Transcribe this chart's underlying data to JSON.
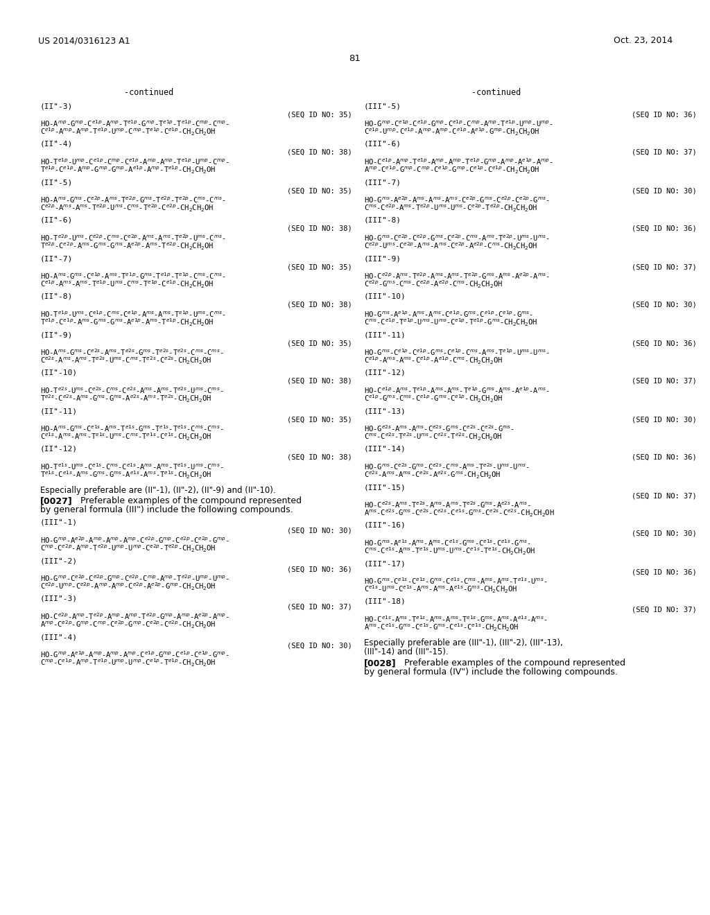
{
  "header_left": "US 2014/0316123 A1",
  "header_right": "Oct. 23, 2014",
  "page_number": "81",
  "left_continued": "-continued",
  "right_continued": "-continued",
  "left_entries": [
    {
      "label": "(II\"-3)",
      "seq": "(SEQ ID NO: 35)",
      "line1": "HO-A$^{mp}$-G$^{mp}$-C$^{e1p}$-A$^{mp}$-T$^{e1p}$-G$^{mp}$-T$^{e1p}$-T$^{e1p}$-C$^{mp}$-C$^{mp}$-",
      "line2": "C$^{e1p}$-A$^{mp}$-A$^{mp}$-T$^{e1p}$-U$^{mp}$-C$^{mp}$-T$^{e1p}$-C$^{e1p}$-CH$_2$CH$_2$OH"
    },
    {
      "label": "(II\"-4)",
      "seq": "(SEQ ID NO: 38)",
      "line1": "HO-T$^{e1p}$-U$^{mp}$-C$^{e1p}$-C$^{mp}$-C$^{e1p}$-A$^{mp}$-A$^{mp}$-T$^{e1p}$-U$^{mp}$-C$^{mp}$-",
      "line2": "T$^{e1p}$-C$^{e1p}$-A$^{mp}$-G$^{mp}$-G$^{mp}$-A$^{e1p}$-A$^{mp}$-T$^{e1p}$-CH$_2$CH$_2$OH"
    },
    {
      "label": "(II\"-5)",
      "seq": "(SEQ ID NO: 35)",
      "line1": "HO-A$^{ms}$-G$^{ms}$-C$^{e2p}$-A$^{ms}$-T$^{e2p}$-G$^{ms}$-T$^{e2p}$-T$^{e2p}$-C$^{ms}$-C$^{ms}$-",
      "line2": "C$^{e2p}$-A$^{ms}$-A$^{ms}$-T$^{e2p}$-U$^{ms}$-C$^{ms}$-T$^{e2p}$-C$^{e2p}$-CH$_2$CH$_2$OH"
    },
    {
      "label": "(II\"-6)",
      "seq": "(SEQ ID NO: 38)",
      "line1": "HO-T$^{e2p}$-U$^{ms}$-C$^{e2p}$-C$^{ms}$-C$^{e2p}$-A$^{ms}$-A$^{ms}$-T$^{e2p}$-U$^{ms}$-C$^{ms}$-",
      "line2": "T$^{e2p}$-C$^{e2p}$-A$^{ms}$-G$^{ms}$-G$^{ms}$-A$^{e2p}$-A$^{ms}$-T$^{e2p}$-CH$_2$CH$_2$OH"
    },
    {
      "label": "(II\"-7)",
      "seq": "(SEQ ID NO: 35)",
      "line1": "HO-A$^{ms}$-G$^{ms}$-C$^{e1p}$-A$^{ms}$-T$^{e1p}$-G$^{ms}$-T$^{e1p}$-T$^{e1p}$-C$^{ms}$-C$^{ms}$-",
      "line2": "C$^{e1p}$-A$^{ms}$-A$^{ms}$-T$^{e1p}$-U$^{ms}$-C$^{ms}$-T$^{e1p}$-C$^{e1p}$-CH$_2$CH$_2$OH"
    },
    {
      "label": "(II\"-8)",
      "seq": "(SEQ ID NO: 38)",
      "line1": "HO-T$^{e1p}$-U$^{ms}$-C$^{e1p}$-C$^{ms}$-C$^{e1p}$-A$^{ms}$-A$^{ms}$-T$^{e1p}$-U$^{ms}$-C$^{ms}$-",
      "line2": "T$^{e1p}$-C$^{e1p}$-A$^{ms}$-G$^{ms}$-G$^{ms}$-A$^{e1p}$-A$^{ms}$-T$^{e1p}$-CH$_2$CH$_2$OH"
    },
    {
      "label": "(II\"-9)",
      "seq": "(SEQ ID NO: 35)",
      "line1": "HO-A$^{ms}$-G$^{ms}$-C$^{e2s}$-A$^{ms}$-T$^{e2s}$-G$^{ms}$-T$^{e2s}$-T$^{e2s}$-C$^{ms}$-C$^{ms}$-",
      "line2": "C$^{e2s}$-A$^{ms}$-A$^{ms}$-T$^{e2s}$-U$^{ms}$-C$^{ms}$-T$^{e2s}$-C$^{e2s}$-CH$_2$CH$_2$OH"
    },
    {
      "label": "(II\"-10)",
      "seq": "(SEQ ID NO: 38)",
      "line1": "HO-T$^{e2s}$-U$^{ms}$-C$^{e2s}$-C$^{ms}$-C$^{e2s}$-A$^{ms}$-A$^{ms}$-T$^{e2s}$-U$^{ms}$-C$^{ms}$-",
      "line2": "T$^{e2s}$-C$^{e2s}$-A$^{ms}$-G$^{ms}$-G$^{ms}$-A$^{e2s}$-A$^{ms}$-T$^{e2s}$-CH$_2$CH$_2$OH"
    },
    {
      "label": "(II\"-11)",
      "seq": "(SEQ ID NO: 35)",
      "line1": "HO-A$^{ms}$-G$^{ms}$-C$^{e1s}$-A$^{ms}$-T$^{e1s}$-G$^{ms}$-T$^{e1s}$-T$^{e1s}$-C$^{ms}$-C$^{ms}$-",
      "line2": "C$^{e1s}$-A$^{ms}$-A$^{ms}$-T$^{e1s}$-U$^{ms}$-C$^{ms}$-T$^{e1s}$-C$^{e1s}$-CH$_2$CH$_2$OH"
    },
    {
      "label": "(II\"-12)",
      "seq": "(SEQ ID NO: 38)",
      "line1": "HO-T$^{e1s}$-U$^{ms}$-C$^{e1s}$-C$^{ms}$-C$^{e1s}$-A$^{ms}$-A$^{ms}$-T$^{e1s}$-U$^{ms}$-C$^{ms}$-",
      "line2": "T$^{e1s}$-C$^{e1s}$-A$^{ms}$-G$^{ms}$-G$^{ms}$-A$^{e1s}$-A$^{ms}$-T$^{e1s}$-CH$_2$CH$_2$OH"
    }
  ],
  "left_note": "Especially preferable are (II\"-1), (II\"-2), (II\"-9) and (II\"-10).",
  "left_para_num": "[0027]",
  "left_para_body": "Preferable examples of the compound represented by general formula (III\") include the following compounds.",
  "left_iii_entries": [
    {
      "label": "(III\"-1)",
      "seq": "(SEQ ID NO: 30)",
      "line1": "HO-G$^{mp}$-A$^{e2p}$-A$^{mp}$-A$^{mp}$-A$^{mp}$-C$^{e2p}$-G$^{mp}$-C$^{e2p}$-C$^{e2p}$-G$^{mp}$-",
      "line2": "C$^{mp}$-C$^{e2p}$-A$^{mp}$-T$^{e2p}$-U$^{mp}$-U$^{mp}$-C$^{e2p}$-T$^{e2p}$-CH$_2$CH$_2$OH"
    },
    {
      "label": "(III\"-2)",
      "seq": "(SEQ ID NO: 36)",
      "line1": "HO-G$^{mp}$-C$^{e2p}$-C$^{e2p}$-G$^{mp}$-C$^{e2p}$-C$^{mp}$-A$^{mp}$-T$^{e2p}$-U$^{mp}$-U$^{mp}$-",
      "line2": "C$^{e2p}$-U$^{mp}$-C$^{e2p}$-A$^{mp}$-A$^{mp}$-C$^{e2p}$-A$^{e2p}$-G$^{mp}$-CH$_2$CH$_2$OH"
    },
    {
      "label": "(III\"-3)",
      "seq": "(SEQ ID NO: 37)",
      "line1": "HO-C$^{e2p}$-A$^{mp}$-T$^{e2p}$-A$^{mp}$-A$^{mp}$-T$^{e2p}$-G$^{mp}$-A$^{mp}$-A$^{e2p}$-A$^{mp}$-",
      "line2": "A$^{mp}$-C$^{e2p}$-G$^{mp}$-C$^{mp}$-C$^{e2p}$-G$^{mp}$-C$^{e2p}$-C$^{e2p}$-CH$_2$CH$_2$OH"
    },
    {
      "label": "(III\"-4)",
      "seq": "(SEQ ID NO: 30)",
      "line1": "HO-G$^{mp}$-A$^{e1p}$-A$^{mp}$-A$^{mp}$-A$^{mp}$-C$^{e1p}$-G$^{mp}$-C$^{e1p}$-C$^{e1p}$-G$^{mp}$-",
      "line2": "C$^{mp}$-C$^{e1p}$-A$^{mp}$-T$^{e1p}$-U$^{mp}$-U$^{mp}$-C$^{e1p}$-T$^{e1p}$-CH$_2$CH$_2$OH"
    }
  ],
  "right_entries": [
    {
      "label": "(III\"-5)",
      "seq": "(SEQ ID NO: 36)",
      "line1": "HO-G$^{mp}$-C$^{e1p}$-C$^{e1p}$-G$^{mp}$-C$^{e1p}$-C$^{mp}$-A$^{mp}$-T$^{e1p}$-U$^{mp}$-U$^{mp}$-",
      "line2": "C$^{e1p}$-U$^{mp}$-C$^{e1p}$-A$^{mp}$-A$^{mp}$-C$^{e1p}$-A$^{e1p}$-G$^{mp}$-CH$_2$CH$_2$OH"
    },
    {
      "label": "(III\"-6)",
      "seq": "(SEQ ID NO: 37)",
      "line1": "HO-C$^{e1p}$-A$^{mp}$-T$^{e1p}$-A$^{mp}$-A$^{mp}$-T$^{e1p}$-G$^{mp}$-A$^{mp}$-A$^{e1p}$-A$^{mp}$-",
      "line2": "A$^{mp}$-C$^{e1p}$-G$^{mp}$-C$^{mp}$-C$^{e1p}$-G$^{mp}$-C$^{e1p}$-C$^{e1p}$-CH$_2$CH$_2$OH"
    },
    {
      "label": "(III\"-7)",
      "seq": "(SEQ ID NO: 30)",
      "line1": "HO-G$^{ms}$-A$^{e2p}$-A$^{ms}$-A$^{ms}$-A$^{ms}$-C$^{e2p}$-G$^{ms}$-C$^{e2p}$-C$^{e2p}$-G$^{ms}$-",
      "line2": "C$^{ms}$-C$^{e2p}$-A$^{ms}$-T$^{e2p}$-U$^{ms}$-U$^{ms}$-C$^{e2p}$-T$^{e2p}$-CH$_2$CH$_2$OH"
    },
    {
      "label": "(III\"-8)",
      "seq": "(SEQ ID NO: 36)",
      "line1": "HO-G$^{ms}$-C$^{e2p}$-C$^{e2p}$-G$^{ms}$-C$^{e2p}$-C$^{ms}$-A$^{ms}$-T$^{e2p}$-U$^{ms}$-U$^{ms}$-",
      "line2": "C$^{e2p}$-U$^{ms}$-C$^{e2p}$-A$^{ms}$-A$^{ms}$-C$^{e2p}$-A$^{e2p}$-C$^{ms}$-CH$_2$CH$_2$OH"
    },
    {
      "label": "(III\"-9)",
      "seq": "(SEQ ID NO: 37)",
      "line1": "HO-C$^{e2p}$-A$^{ms}$-T$^{e2p}$-A$^{ms}$-A$^{ms}$-T$^{e2p}$-G$^{ms}$-A$^{ms}$-A$^{e2p}$-A$^{ms}$-",
      "line2": "C$^{e2p}$-G$^{ms}$-C$^{ms}$-C$^{e2p}$-A$^{e2p}$-C$^{ms}$-CH$_2$CH$_2$OH"
    },
    {
      "label": "(III\"-10)",
      "seq": "(SEQ ID NO: 30)",
      "line1": "HO-G$^{ms}$-A$^{e1p}$-A$^{ms}$-A$^{ms}$-C$^{e1p}$-G$^{ms}$-C$^{e1p}$-C$^{e1p}$-G$^{ms}$-",
      "line2": "C$^{ms}$-C$^{e1p}$-T$^{e1p}$-U$^{ms}$-U$^{ms}$-C$^{e1p}$-T$^{e1p}$-G$^{ms}$-CH$_2$CH$_2$OH"
    },
    {
      "label": "(III\"-11)",
      "seq": "(SEQ ID NO: 36)",
      "line1": "HO-G$^{ms}$-C$^{e1p}$-C$^{e1p}$-G$^{ms}$-C$^{e1p}$-C$^{ms}$-A$^{ms}$-T$^{e1p}$-U$^{ms}$-U$^{ms}$-",
      "line2": "C$^{e1p}$-A$^{ms}$-A$^{ms}$-C$^{e1p}$-A$^{e1p}$-C$^{ms}$-CH$_2$CH$_2$OH"
    },
    {
      "label": "(III\"-12)",
      "seq": "(SEQ ID NO: 37)",
      "line1": "HO-C$^{e1p}$-A$^{ms}$-T$^{e1p}$-A$^{ms}$-A$^{ms}$-T$^{e1p}$-G$^{ms}$-A$^{ms}$-A$^{e1p}$-A$^{ms}$-",
      "line2": "C$^{e1p}$-G$^{ms}$-C$^{ms}$-C$^{e1p}$-G$^{ms}$-C$^{e1p}$-CH$_2$CH$_2$OH"
    },
    {
      "label": "(III\"-13)",
      "seq": "(SEQ ID NO: 30)",
      "line1": "HO-G$^{e2s}$-A$^{ms}$-A$^{ms}$-C$^{e2s}$-G$^{ms}$-C$^{e2s}$-C$^{e2s}$-G$^{ms}$-",
      "line2": "C$^{ms}$-C$^{e2s}$-T$^{e2s}$-U$^{ms}$-C$^{e2s}$-T$^{e2s}$-CH$_2$CH$_2$OH"
    },
    {
      "label": "(III\"-14)",
      "seq": "(SEQ ID NO: 36)",
      "line1": "HO-G$^{ms}$-C$^{e2s}$-G$^{ms}$-C$^{e2s}$-C$^{ms}$-A$^{ms}$-T$^{e2s}$-U$^{ms}$-U$^{ms}$-",
      "line2": "C$^{e2s}$-A$^{ms}$-A$^{ms}$-C$^{e2s}$-A$^{e2s}$-G$^{ms}$-CH$_2$CH$_2$OH"
    },
    {
      "label": "(III\"-15)",
      "seq": "(SEQ ID NO: 37)",
      "line1": "HO-C$^{e2s}$-A$^{ms}$-T$^{e2s}$-A$^{ms}$-A$^{ms}$-T$^{e2s}$-G$^{ms}$-A$^{e2s}$-A$^{ms}$-",
      "line2": "A$^{ms}$-C$^{e2s}$-G$^{ms}$-C$^{e2s}$-C$^{e2s}$-C$^{e1s}$-G$^{ms}$-C$^{e2s}$-C$^{e2s}$-CH$_2$CH$_2$OH"
    },
    {
      "label": "(III\"-16)",
      "seq": "(SEQ ID NO: 30)",
      "line1": "HO-G$^{ms}$-A$^{e1s}$-A$^{ms}$-A$^{ms}$-C$^{e1s}$-G$^{ms}$-C$^{e1s}$-C$^{e1s}$-G$^{ms}$-",
      "line2": "C$^{ms}$-C$^{e1s}$-A$^{ms}$-T$^{e1s}$-U$^{ms}$-U$^{ms}$-C$^{e1s}$-T$^{e1s}$-CH$_2$CH$_2$OH"
    },
    {
      "label": "(III\"-17)",
      "seq": "(SEQ ID NO: 36)",
      "line1": "HO-G$^{ms}$-C$^{e1s}$-C$^{e1s}$-G$^{ms}$-C$^{e1s}$-C$^{ms}$-A$^{ms}$-A$^{ms}$-T$^{e1s}$-U$^{ms}$-",
      "line2": "C$^{e1s}$-U$^{ms}$-C$^{e1s}$-A$^{ms}$-A$^{ms}$-A$^{e1s}$-G$^{ms}$-CH$_2$CH$_2$OH"
    },
    {
      "label": "(III\"-18)",
      "seq": "(SEQ ID NO: 37)",
      "line1": "HO-C$^{e1s}$-A$^{ms}$-T$^{e1s}$-A$^{ms}$-A$^{ms}$-T$^{e1s}$-G$^{ms}$-A$^{ms}$-A$^{e1s}$-A$^{ms}$-",
      "line2": "A$^{ms}$-C$^{e1s}$-G$^{ms}$-C$^{e1s}$-G$^{ms}$-C$^{e1s}$-C$^{e1s}$-CH$_2$CH$_2$OH"
    }
  ],
  "right_note_line1": "Especially preferable are (III\"-1), (III\"-2), (III\"-13),",
  "right_note_line2": "(III\"-14) and (III\"-15).",
  "right_para_num": "[0028]",
  "right_para_body": "Preferable examples of the compound represented by general formula (IV\") include the following compounds."
}
